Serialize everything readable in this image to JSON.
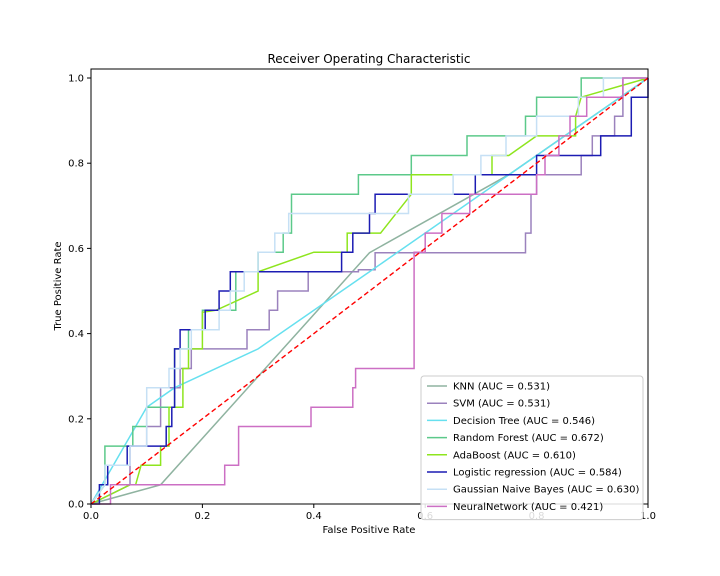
{
  "chart_data": {
    "type": "line",
    "title": "Receiver Operating Characteristic",
    "xlabel": "False Positive Rate",
    "ylabel": "True Positive Rate",
    "xlim": [
      0,
      1
    ],
    "ylim": [
      0,
      1
    ],
    "x_ticks": [
      "0.0",
      "0.2",
      "0.4",
      "0.6",
      "0.8",
      "1.0"
    ],
    "y_ticks": [
      "0.0",
      "0.2",
      "0.4",
      "0.6",
      "0.8",
      "1.0"
    ],
    "legend_position": "lower-right",
    "grid": false,
    "diagonal": {
      "color": "#ff0000",
      "style": "dashed",
      "points": [
        [
          0,
          0
        ],
        [
          1,
          1
        ]
      ]
    },
    "series": [
      {
        "name": "KNN (AUC = 0.531)",
        "color": "#8fb3a0",
        "points": [
          [
            0,
            0
          ],
          [
            0.125,
            0.045
          ],
          [
            0.5,
            0.59
          ],
          [
            0.75,
            0.773
          ],
          [
            1,
            1
          ]
        ]
      },
      {
        "name": "SVM (AUC = 0.531)",
        "color": "#9b82bd",
        "points": [
          [
            0,
            0
          ],
          [
            0.07,
            0.045
          ],
          [
            0.07,
            0.136
          ],
          [
            0.1,
            0.136
          ],
          [
            0.1,
            0.182
          ],
          [
            0.125,
            0.182
          ],
          [
            0.125,
            0.273
          ],
          [
            0.16,
            0.273
          ],
          [
            0.16,
            0.318
          ],
          [
            0.18,
            0.318
          ],
          [
            0.18,
            0.364
          ],
          [
            0.28,
            0.364
          ],
          [
            0.28,
            0.409
          ],
          [
            0.32,
            0.409
          ],
          [
            0.32,
            0.455
          ],
          [
            0.335,
            0.455
          ],
          [
            0.335,
            0.5
          ],
          [
            0.39,
            0.5
          ],
          [
            0.39,
            0.545
          ],
          [
            0.48,
            0.545
          ],
          [
            0.48,
            0.55
          ],
          [
            0.51,
            0.55
          ],
          [
            0.51,
            0.59
          ],
          [
            0.78,
            0.59
          ],
          [
            0.78,
            0.636
          ],
          [
            0.79,
            0.636
          ],
          [
            0.79,
            0.727
          ],
          [
            0.8,
            0.727
          ],
          [
            0.8,
            0.773
          ],
          [
            0.88,
            0.773
          ],
          [
            0.88,
            0.818
          ],
          [
            0.9,
            0.818
          ],
          [
            0.9,
            0.864
          ],
          [
            0.94,
            0.864
          ],
          [
            0.94,
            0.91
          ],
          [
            0.955,
            0.91
          ],
          [
            0.955,
            0.955
          ],
          [
            0.955,
            1
          ],
          [
            1,
            1
          ]
        ]
      },
      {
        "name": "Decision Tree (AUC = 0.546)",
        "color": "#66e0ef",
        "points": [
          [
            0,
            0
          ],
          [
            0.1,
            0.227
          ],
          [
            0.15,
            0.273
          ],
          [
            0.3,
            0.364
          ],
          [
            0.5,
            0.545
          ],
          [
            0.7,
            0.727
          ],
          [
            1,
            1
          ]
        ]
      },
      {
        "name": "Random Forest (AUC = 0.672)",
        "color": "#5cc98a",
        "points": [
          [
            0,
            0
          ],
          [
            0.025,
            0.045
          ],
          [
            0.025,
            0.136
          ],
          [
            0.075,
            0.136
          ],
          [
            0.075,
            0.182
          ],
          [
            0.1,
            0.182
          ],
          [
            0.1,
            0.227
          ],
          [
            0.15,
            0.227
          ],
          [
            0.15,
            0.364
          ],
          [
            0.175,
            0.364
          ],
          [
            0.175,
            0.409
          ],
          [
            0.2,
            0.409
          ],
          [
            0.2,
            0.455
          ],
          [
            0.26,
            0.455
          ],
          [
            0.26,
            0.545
          ],
          [
            0.3,
            0.545
          ],
          [
            0.3,
            0.591
          ],
          [
            0.345,
            0.591
          ],
          [
            0.345,
            0.636
          ],
          [
            0.36,
            0.636
          ],
          [
            0.36,
            0.727
          ],
          [
            0.48,
            0.727
          ],
          [
            0.48,
            0.773
          ],
          [
            0.575,
            0.773
          ],
          [
            0.575,
            0.818
          ],
          [
            0.675,
            0.818
          ],
          [
            0.675,
            0.864
          ],
          [
            0.78,
            0.864
          ],
          [
            0.78,
            0.91
          ],
          [
            0.8,
            0.91
          ],
          [
            0.8,
            0.955
          ],
          [
            0.88,
            0.955
          ],
          [
            0.88,
            1
          ],
          [
            1,
            1
          ]
        ]
      },
      {
        "name": "AdaBoost (AUC = 0.610)",
        "color": "#8ee51e",
        "points": [
          [
            0,
            0
          ],
          [
            0.07,
            0.045
          ],
          [
            0.08,
            0.045
          ],
          [
            0.09,
            0.091
          ],
          [
            0.125,
            0.091
          ],
          [
            0.125,
            0.136
          ],
          [
            0.14,
            0.136
          ],
          [
            0.14,
            0.227
          ],
          [
            0.165,
            0.227
          ],
          [
            0.165,
            0.318
          ],
          [
            0.175,
            0.318
          ],
          [
            0.175,
            0.364
          ],
          [
            0.2,
            0.364
          ],
          [
            0.2,
            0.45
          ],
          [
            0.225,
            0.455
          ],
          [
            0.3,
            0.5
          ],
          [
            0.3,
            0.545
          ],
          [
            0.4,
            0.591
          ],
          [
            0.46,
            0.591
          ],
          [
            0.46,
            0.636
          ],
          [
            0.52,
            0.636
          ],
          [
            0.575,
            0.727
          ],
          [
            0.575,
            0.773
          ],
          [
            0.72,
            0.773
          ],
          [
            0.72,
            0.818
          ],
          [
            0.75,
            0.818
          ],
          [
            0.8,
            0.864
          ],
          [
            0.87,
            0.864
          ],
          [
            0.87,
            0.91
          ],
          [
            0.88,
            0.955
          ],
          [
            1,
            1
          ]
        ]
      },
      {
        "name": "Logistic regression (AUC = 0.584)",
        "color": "#1c1cb3",
        "points": [
          [
            0,
            0
          ],
          [
            0.015,
            0
          ],
          [
            0.015,
            0.045
          ],
          [
            0.03,
            0.045
          ],
          [
            0.03,
            0.091
          ],
          [
            0.065,
            0.091
          ],
          [
            0.065,
            0.136
          ],
          [
            0.135,
            0.136
          ],
          [
            0.135,
            0.182
          ],
          [
            0.145,
            0.182
          ],
          [
            0.145,
            0.227
          ],
          [
            0.15,
            0.227
          ],
          [
            0.15,
            0.364
          ],
          [
            0.16,
            0.364
          ],
          [
            0.16,
            0.409
          ],
          [
            0.205,
            0.409
          ],
          [
            0.205,
            0.455
          ],
          [
            0.23,
            0.455
          ],
          [
            0.23,
            0.5
          ],
          [
            0.25,
            0.5
          ],
          [
            0.25,
            0.545
          ],
          [
            0.45,
            0.545
          ],
          [
            0.45,
            0.591
          ],
          [
            0.47,
            0.591
          ],
          [
            0.47,
            0.636
          ],
          [
            0.5,
            0.636
          ],
          [
            0.5,
            0.682
          ],
          [
            0.51,
            0.682
          ],
          [
            0.51,
            0.727
          ],
          [
            0.69,
            0.727
          ],
          [
            0.69,
            0.773
          ],
          [
            0.8,
            0.773
          ],
          [
            0.8,
            0.818
          ],
          [
            0.915,
            0.818
          ],
          [
            0.915,
            0.864
          ],
          [
            0.97,
            0.864
          ],
          [
            0.97,
            0.955
          ],
          [
            1,
            0.955
          ],
          [
            1,
            1
          ]
        ]
      },
      {
        "name": "Gaussian Naive Bayes (AUC = 0.630)",
        "color": "#c6e0f5",
        "points": [
          [
            0,
            0
          ],
          [
            0.025,
            0.045
          ],
          [
            0.025,
            0.091
          ],
          [
            0.07,
            0.091
          ],
          [
            0.07,
            0.136
          ],
          [
            0.1,
            0.136
          ],
          [
            0.1,
            0.273
          ],
          [
            0.14,
            0.273
          ],
          [
            0.14,
            0.318
          ],
          [
            0.16,
            0.318
          ],
          [
            0.16,
            0.364
          ],
          [
            0.18,
            0.364
          ],
          [
            0.18,
            0.409
          ],
          [
            0.23,
            0.409
          ],
          [
            0.23,
            0.455
          ],
          [
            0.25,
            0.455
          ],
          [
            0.25,
            0.5
          ],
          [
            0.275,
            0.5
          ],
          [
            0.275,
            0.545
          ],
          [
            0.3,
            0.545
          ],
          [
            0.3,
            0.591
          ],
          [
            0.33,
            0.591
          ],
          [
            0.33,
            0.636
          ],
          [
            0.355,
            0.636
          ],
          [
            0.355,
            0.682
          ],
          [
            0.57,
            0.682
          ],
          [
            0.57,
            0.727
          ],
          [
            0.65,
            0.727
          ],
          [
            0.65,
            0.773
          ],
          [
            0.7,
            0.773
          ],
          [
            0.7,
            0.818
          ],
          [
            0.745,
            0.818
          ],
          [
            0.745,
            0.864
          ],
          [
            0.8,
            0.864
          ],
          [
            0.8,
            0.91
          ],
          [
            0.875,
            0.91
          ],
          [
            0.875,
            0.955
          ],
          [
            0.92,
            0.955
          ],
          [
            0.92,
            1
          ],
          [
            1,
            1
          ]
        ]
      },
      {
        "name": "NeuralNetwork (AUC = 0.421)",
        "color": "#cc6fc4",
        "points": [
          [
            0,
            0
          ],
          [
            0.035,
            0
          ],
          [
            0.035,
            0.045
          ],
          [
            0.24,
            0.045
          ],
          [
            0.24,
            0.091
          ],
          [
            0.265,
            0.091
          ],
          [
            0.265,
            0.182
          ],
          [
            0.395,
            0.182
          ],
          [
            0.395,
            0.227
          ],
          [
            0.47,
            0.227
          ],
          [
            0.47,
            0.273
          ],
          [
            0.475,
            0.273
          ],
          [
            0.475,
            0.318
          ],
          [
            0.58,
            0.318
          ],
          [
            0.58,
            0.591
          ],
          [
            0.6,
            0.591
          ],
          [
            0.6,
            0.636
          ],
          [
            0.63,
            0.636
          ],
          [
            0.63,
            0.682
          ],
          [
            0.68,
            0.682
          ],
          [
            0.68,
            0.727
          ],
          [
            0.8,
            0.727
          ],
          [
            0.8,
            0.773
          ],
          [
            0.815,
            0.773
          ],
          [
            0.815,
            0.818
          ],
          [
            0.84,
            0.818
          ],
          [
            0.84,
            0.864
          ],
          [
            0.86,
            0.864
          ],
          [
            0.86,
            0.91
          ],
          [
            0.89,
            0.91
          ],
          [
            0.89,
            0.955
          ],
          [
            0.955,
            0.955
          ],
          [
            0.955,
            1
          ],
          [
            1,
            1
          ]
        ]
      }
    ]
  }
}
